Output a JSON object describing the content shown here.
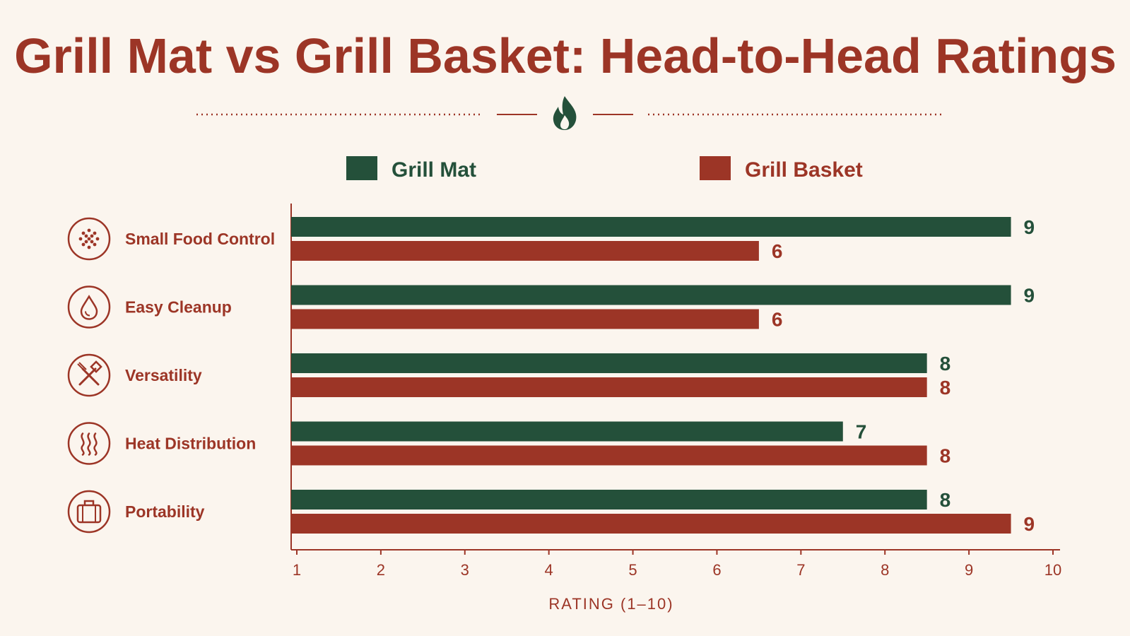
{
  "colors": {
    "background": "#fbf5ee",
    "text": "#9c3526",
    "grill_mat": "#24503a",
    "grill_basket": "#9c3526"
  },
  "chart_data": {
    "type": "bar",
    "orientation": "horizontal",
    "title": "Grill Mat vs Grill Basket: Head-to-Head Ratings",
    "xlabel": "RATING (1–10)",
    "ylabel": "",
    "xlim": [
      1,
      10
    ],
    "xticks": [
      1,
      2,
      3,
      4,
      5,
      6,
      7,
      8,
      9,
      10
    ],
    "grid": false,
    "legend": "top-center",
    "categories": [
      "Small Food Control",
      "Easy Cleanup",
      "Versatility",
      "Heat Distribution",
      "Portability"
    ],
    "category_icons": [
      "spice-dots-icon",
      "water-drop-icon",
      "crossed-tools-icon",
      "heat-waves-icon",
      "suitcase-icon"
    ],
    "series": [
      {
        "name": "Grill Mat",
        "color": "#24503a",
        "values": [
          9,
          9,
          8,
          7,
          8
        ]
      },
      {
        "name": "Grill Basket",
        "color": "#9c3526",
        "values": [
          6,
          6,
          8,
          8,
          9
        ]
      }
    ]
  }
}
